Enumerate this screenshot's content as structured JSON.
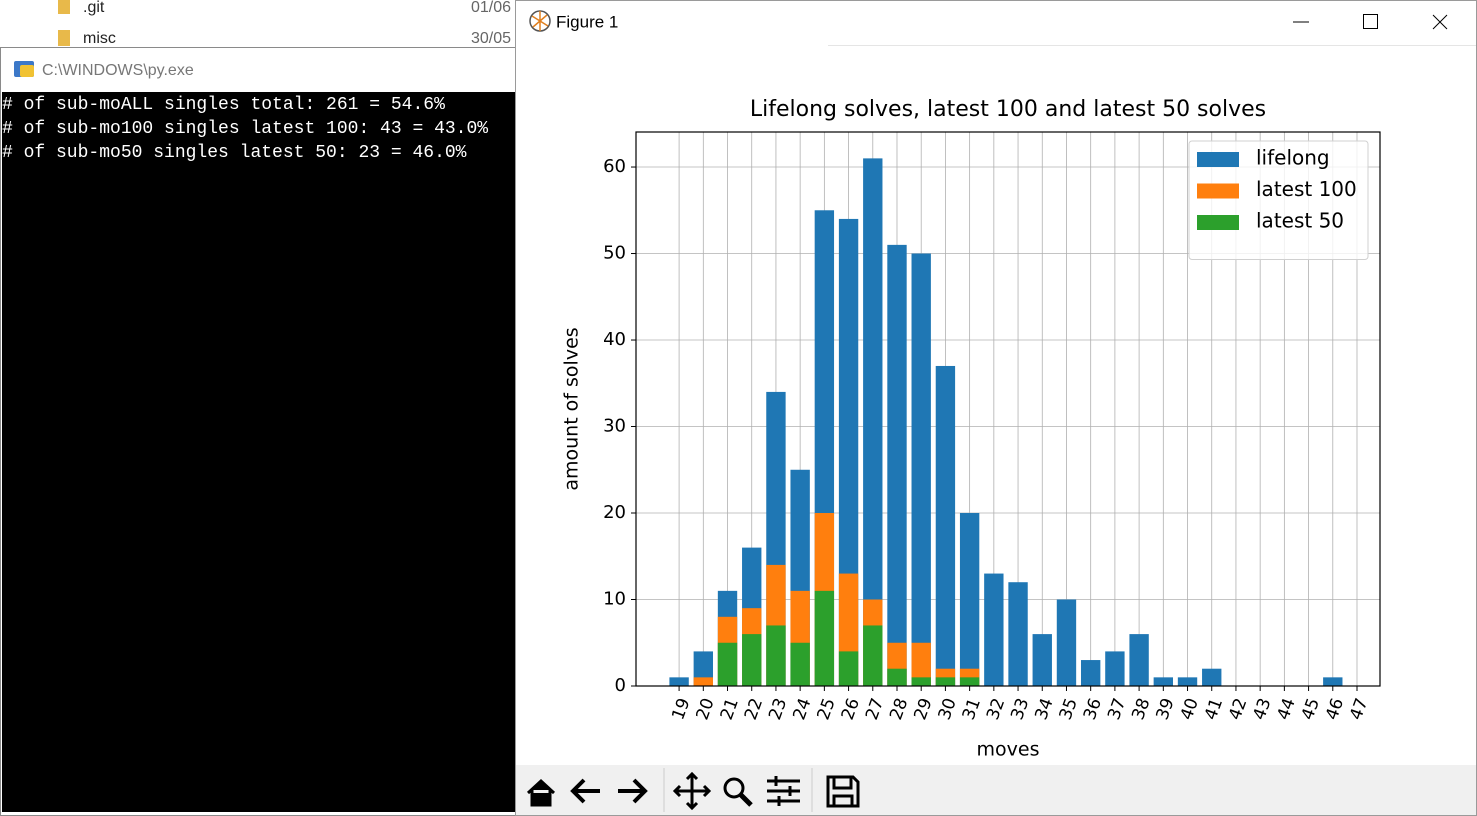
{
  "explorer": {
    "rows": [
      {
        "name": ".git",
        "date": "01/06"
      },
      {
        "name": "misc",
        "date": "30/05"
      }
    ]
  },
  "console": {
    "title": "C:\\WINDOWS\\py.exe",
    "lines": [
      "# of sub-moALL singles total: 261 = 54.6%",
      "# of sub-mo100 singles latest 100: 43 = 43.0%",
      "# of sub-mo50 singles latest 50: 23 = 46.0%"
    ]
  },
  "figure_window": {
    "title": "Figure 1"
  },
  "chart_data": {
    "type": "bar",
    "title": "Lifelong solves, latest 100 and latest 50 solves",
    "x_label": "moves",
    "y_label": "amount of solves",
    "x": [
      19,
      20,
      21,
      22,
      23,
      24,
      25,
      26,
      27,
      28,
      29,
      30,
      31,
      32,
      33,
      34,
      35,
      36,
      37,
      38,
      39,
      40,
      41,
      42,
      43,
      44,
      45,
      46,
      47
    ],
    "series": [
      {
        "name": "lifelong",
        "color": "#1f77b4",
        "values": [
          1,
          4,
          11,
          16,
          34,
          25,
          55,
          54,
          61,
          51,
          50,
          37,
          20,
          13,
          12,
          6,
          10,
          3,
          4,
          6,
          1,
          1,
          2,
          0,
          0,
          0,
          0,
          1,
          0
        ]
      },
      {
        "name": "latest 100",
        "color": "#ff7f0e",
        "values": [
          0,
          1,
          8,
          9,
          14,
          11,
          20,
          13,
          10,
          5,
          5,
          2,
          2,
          0,
          0,
          0,
          0,
          0,
          0,
          0,
          0,
          0,
          0,
          0,
          0,
          0,
          0,
          0,
          0
        ]
      },
      {
        "name": "latest 50",
        "color": "#2ca02c",
        "values": [
          0,
          0,
          5,
          6,
          7,
          5,
          11,
          4,
          7,
          2,
          1,
          1,
          1,
          0,
          0,
          0,
          0,
          0,
          0,
          0,
          0,
          0,
          0,
          0,
          0,
          0,
          0,
          0,
          0
        ]
      }
    ],
    "xlim": [
      17.22,
      47.95
    ],
    "xticks": [
      19,
      20,
      21,
      22,
      23,
      24,
      25,
      26,
      27,
      28,
      29,
      30,
      31,
      32,
      33,
      34,
      35,
      36,
      37,
      38,
      39,
      40,
      41,
      42,
      43,
      44,
      45,
      46,
      47
    ],
    "ylim": [
      0,
      64.05
    ],
    "yticks": [
      0,
      10,
      20,
      30,
      40,
      50,
      60
    ],
    "grid": true,
    "legend": "upper-right"
  }
}
